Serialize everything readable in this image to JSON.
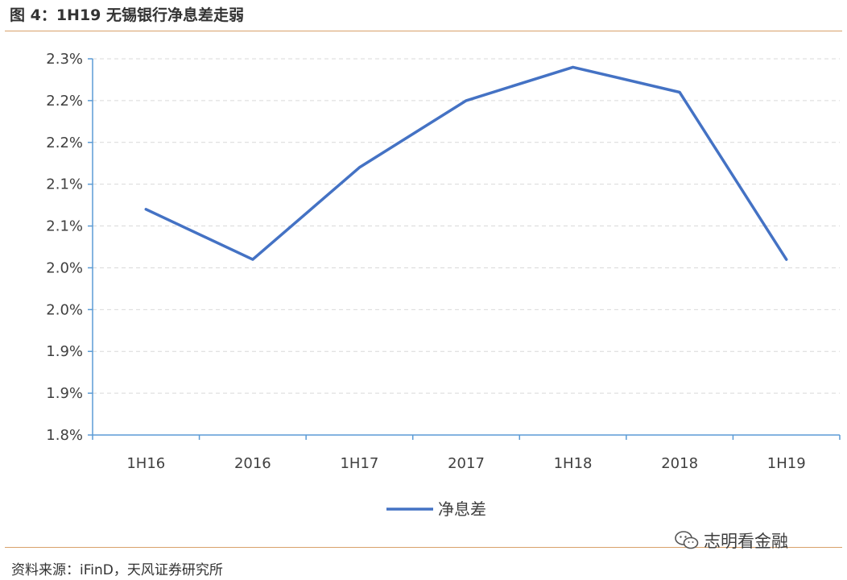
{
  "figure": {
    "title": "图 4：1H19 无锡银行净息差走弱",
    "source": "资料来源：iFinD，天风证券研究所",
    "watermark": "志明看金融"
  },
  "colors": {
    "series": "#4472c4",
    "axis": "#5b9bd5",
    "grid": "#d9d9d9",
    "rule": "#d9a16a"
  },
  "icons": {
    "watermark": "wechat-icon"
  },
  "chart_data": {
    "type": "line",
    "title": "",
    "xlabel": "",
    "ylabel": "",
    "categories": [
      "1H16",
      "2016",
      "1H17",
      "2017",
      "1H18",
      "2018",
      "1H19"
    ],
    "ylim": [
      1.8,
      2.25
    ],
    "y_ticks": [
      1.8,
      1.85,
      1.9,
      1.95,
      2.0,
      2.05,
      2.1,
      2.15,
      2.2,
      2.25
    ],
    "y_tick_labels": [
      "1.8%",
      "1.9%",
      "1.9%",
      "2.0%",
      "2.0%",
      "2.1%",
      "2.1%",
      "2.2%",
      "2.2%",
      "2.3%"
    ],
    "grid": true,
    "legend_position": "bottom",
    "series": [
      {
        "name": "净息差",
        "values": [
          2.07,
          2.01,
          2.12,
          2.2,
          2.24,
          2.21,
          2.01
        ]
      }
    ]
  }
}
